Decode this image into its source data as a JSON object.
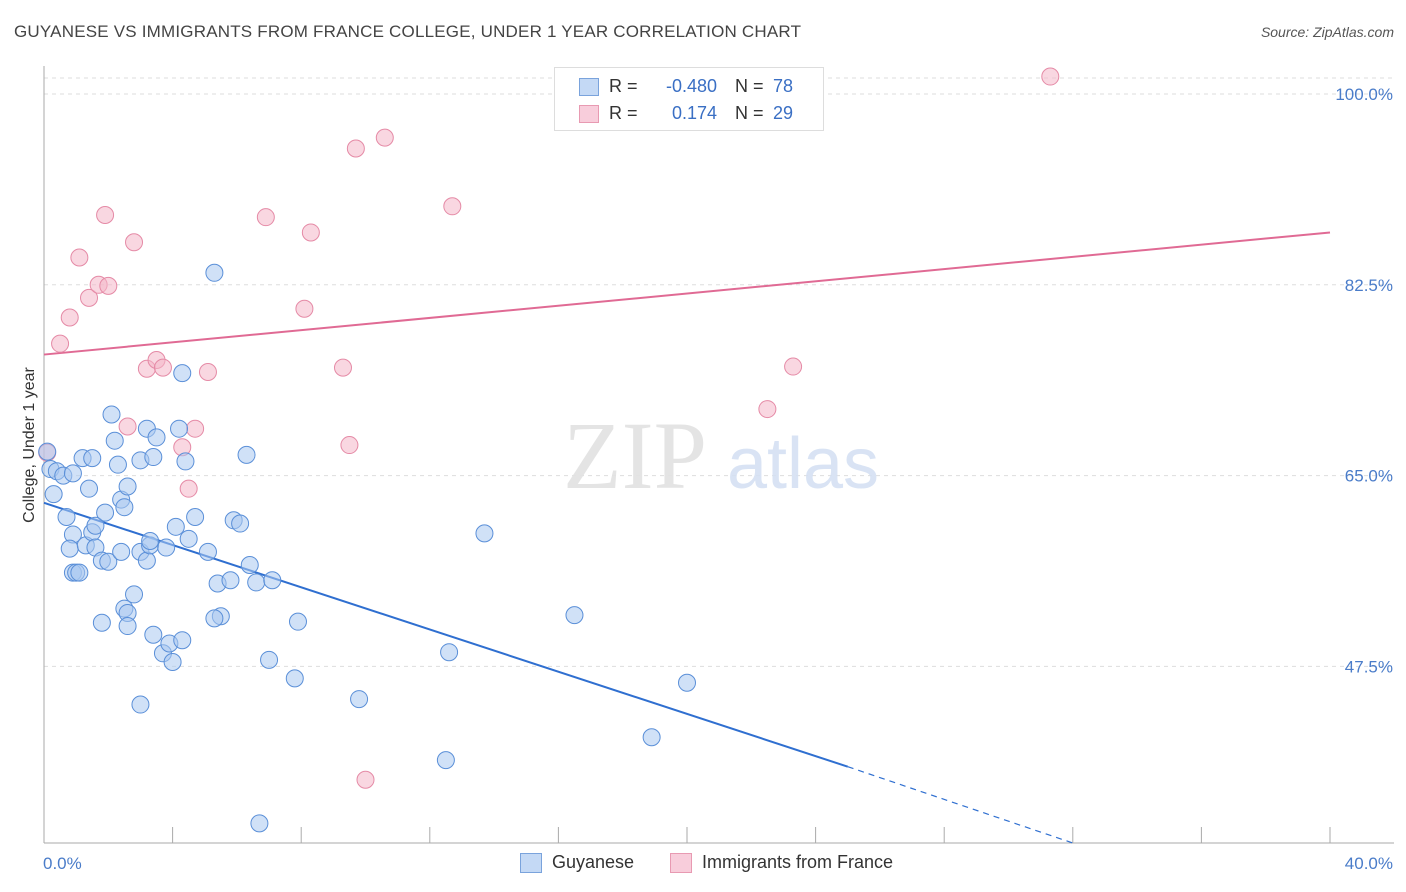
{
  "title": "GUYANESE VS IMMIGRANTS FROM FRANCE COLLEGE, UNDER 1 YEAR CORRELATION CHART",
  "source": "Source: ZipAtlas.com",
  "watermark": {
    "zip": "ZIP",
    "atlas": "atlas"
  },
  "legend": {
    "rows": [
      {
        "r_label": "R =",
        "r_value": "-0.480",
        "n_label": "N =",
        "n_value": "78"
      },
      {
        "r_label": "R =",
        "r_value": "0.174",
        "n_label": "N =",
        "n_value": "29"
      }
    ]
  },
  "bottom_legend": {
    "series1": "Guyanese",
    "series2": "Immigrants from France"
  },
  "colors": {
    "blue_fill": "#a9c8f0",
    "blue_stroke": "#5a8fd8",
    "blue_line": "#2f6fd0",
    "pink_fill": "#f4b6c8",
    "pink_stroke": "#e58aa6",
    "pink_line": "#e06a94",
    "tick_text": "#4a7cc9",
    "grid": "#dddddd"
  },
  "chart_data": {
    "type": "scatter",
    "title": "GUYANESE VS IMMIGRANTS FROM FRANCE COLLEGE, UNDER 1 YEAR CORRELATION CHART",
    "xlabel": "",
    "ylabel": "College, Under 1 year",
    "xlim": [
      0,
      40
    ],
    "ylim": [
      31.3,
      102.2
    ],
    "x_tick_labels": [
      {
        "value": 0,
        "label": "0.0%"
      },
      {
        "value": 40,
        "label": "40.0%"
      }
    ],
    "y_tick_labels": [
      {
        "value": 100,
        "label": "100.0%"
      },
      {
        "value": 82.5,
        "label": "82.5%"
      },
      {
        "value": 65,
        "label": "65.0%"
      },
      {
        "value": 47.5,
        "label": "47.5%"
      }
    ],
    "series": [
      {
        "name": "Guyanese",
        "r": -0.48,
        "n": 78,
        "trend": {
          "x_start": 0,
          "y_start": 62.5,
          "x_solid_end": 25.0,
          "y_solid_end": 38.3,
          "x_dash_end": 32.0,
          "y_dash_end": 31.3
        },
        "points": [
          [
            0.1,
            67.2
          ],
          [
            0.2,
            65.6
          ],
          [
            0.4,
            65.4
          ],
          [
            0.6,
            65.0
          ],
          [
            0.3,
            63.3
          ],
          [
            0.7,
            61.2
          ],
          [
            0.9,
            59.6
          ],
          [
            0.8,
            58.3
          ],
          [
            0.9,
            56.1
          ],
          [
            1.0,
            56.1
          ],
          [
            1.1,
            56.1
          ],
          [
            1.2,
            66.6
          ],
          [
            1.3,
            58.6
          ],
          [
            1.5,
            59.8
          ],
          [
            1.4,
            63.8
          ],
          [
            1.6,
            60.4
          ],
          [
            1.5,
            66.6
          ],
          [
            1.6,
            58.4
          ],
          [
            1.8,
            57.2
          ],
          [
            1.9,
            61.6
          ],
          [
            2.0,
            57.1
          ],
          [
            2.1,
            70.6
          ],
          [
            2.2,
            68.2
          ],
          [
            2.3,
            66.0
          ],
          [
            2.4,
            62.8
          ],
          [
            2.4,
            58.0
          ],
          [
            2.5,
            62.1
          ],
          [
            2.6,
            64.0
          ],
          [
            2.5,
            52.8
          ],
          [
            2.6,
            52.4
          ],
          [
            2.6,
            51.2
          ],
          [
            2.8,
            54.1
          ],
          [
            3.0,
            58.0
          ],
          [
            3.0,
            66.4
          ],
          [
            3.2,
            69.3
          ],
          [
            3.2,
            57.2
          ],
          [
            3.3,
            58.6
          ],
          [
            3.3,
            59.0
          ],
          [
            3.4,
            66.7
          ],
          [
            3.5,
            68.5
          ],
          [
            3.4,
            50.4
          ],
          [
            3.7,
            48.7
          ],
          [
            3.8,
            58.4
          ],
          [
            3.9,
            49.6
          ],
          [
            4.0,
            47.9
          ],
          [
            4.1,
            60.3
          ],
          [
            4.2,
            69.3
          ],
          [
            4.3,
            49.9
          ],
          [
            4.4,
            66.3
          ],
          [
            4.5,
            59.2
          ],
          [
            4.7,
            61.2
          ],
          [
            5.1,
            58.0
          ],
          [
            5.4,
            55.1
          ],
          [
            5.5,
            52.1
          ],
          [
            5.3,
            51.9
          ],
          [
            5.8,
            55.4
          ],
          [
            5.9,
            60.9
          ],
          [
            6.1,
            60.6
          ],
          [
            6.3,
            66.9
          ],
          [
            6.4,
            56.8
          ],
          [
            6.6,
            55.2
          ],
          [
            7.0,
            48.1
          ],
          [
            7.1,
            55.4
          ],
          [
            7.8,
            46.4
          ],
          [
            7.9,
            51.6
          ],
          [
            9.8,
            44.5
          ],
          [
            12.5,
            38.9
          ],
          [
            12.6,
            48.8
          ],
          [
            13.7,
            59.7
          ],
          [
            16.5,
            52.2
          ],
          [
            18.9,
            41.0
          ],
          [
            20.0,
            46.0
          ],
          [
            5.3,
            83.6
          ],
          [
            4.3,
            74.4
          ],
          [
            6.7,
            33.1
          ],
          [
            3.0,
            44.0
          ],
          [
            1.8,
            51.5
          ],
          [
            0.9,
            65.2
          ]
        ]
      },
      {
        "name": "Immigrants from France",
        "r": 0.174,
        "n": 29,
        "trend": {
          "x_start": 0,
          "y_start": 76.1,
          "x_end": 40,
          "y_end": 87.3
        },
        "points": [
          [
            0.1,
            67.1
          ],
          [
            0.5,
            77.1
          ],
          [
            0.8,
            79.5
          ],
          [
            1.1,
            85.0
          ],
          [
            1.4,
            81.3
          ],
          [
            1.7,
            82.5
          ],
          [
            1.9,
            88.9
          ],
          [
            2.0,
            82.4
          ],
          [
            2.6,
            69.5
          ],
          [
            2.8,
            86.4
          ],
          [
            3.2,
            74.8
          ],
          [
            3.5,
            75.6
          ],
          [
            3.7,
            74.9
          ],
          [
            4.3,
            67.6
          ],
          [
            4.5,
            63.8
          ],
          [
            4.7,
            69.3
          ],
          [
            5.1,
            74.5
          ],
          [
            6.9,
            88.7
          ],
          [
            8.1,
            80.3
          ],
          [
            8.3,
            87.3
          ],
          [
            9.3,
            74.9
          ],
          [
            9.5,
            67.8
          ],
          [
            9.7,
            95.0
          ],
          [
            10.0,
            37.1
          ],
          [
            10.6,
            96.0
          ],
          [
            12.7,
            89.7
          ],
          [
            22.5,
            71.1
          ],
          [
            23.3,
            75.0
          ],
          [
            31.3,
            101.6
          ]
        ]
      }
    ]
  }
}
